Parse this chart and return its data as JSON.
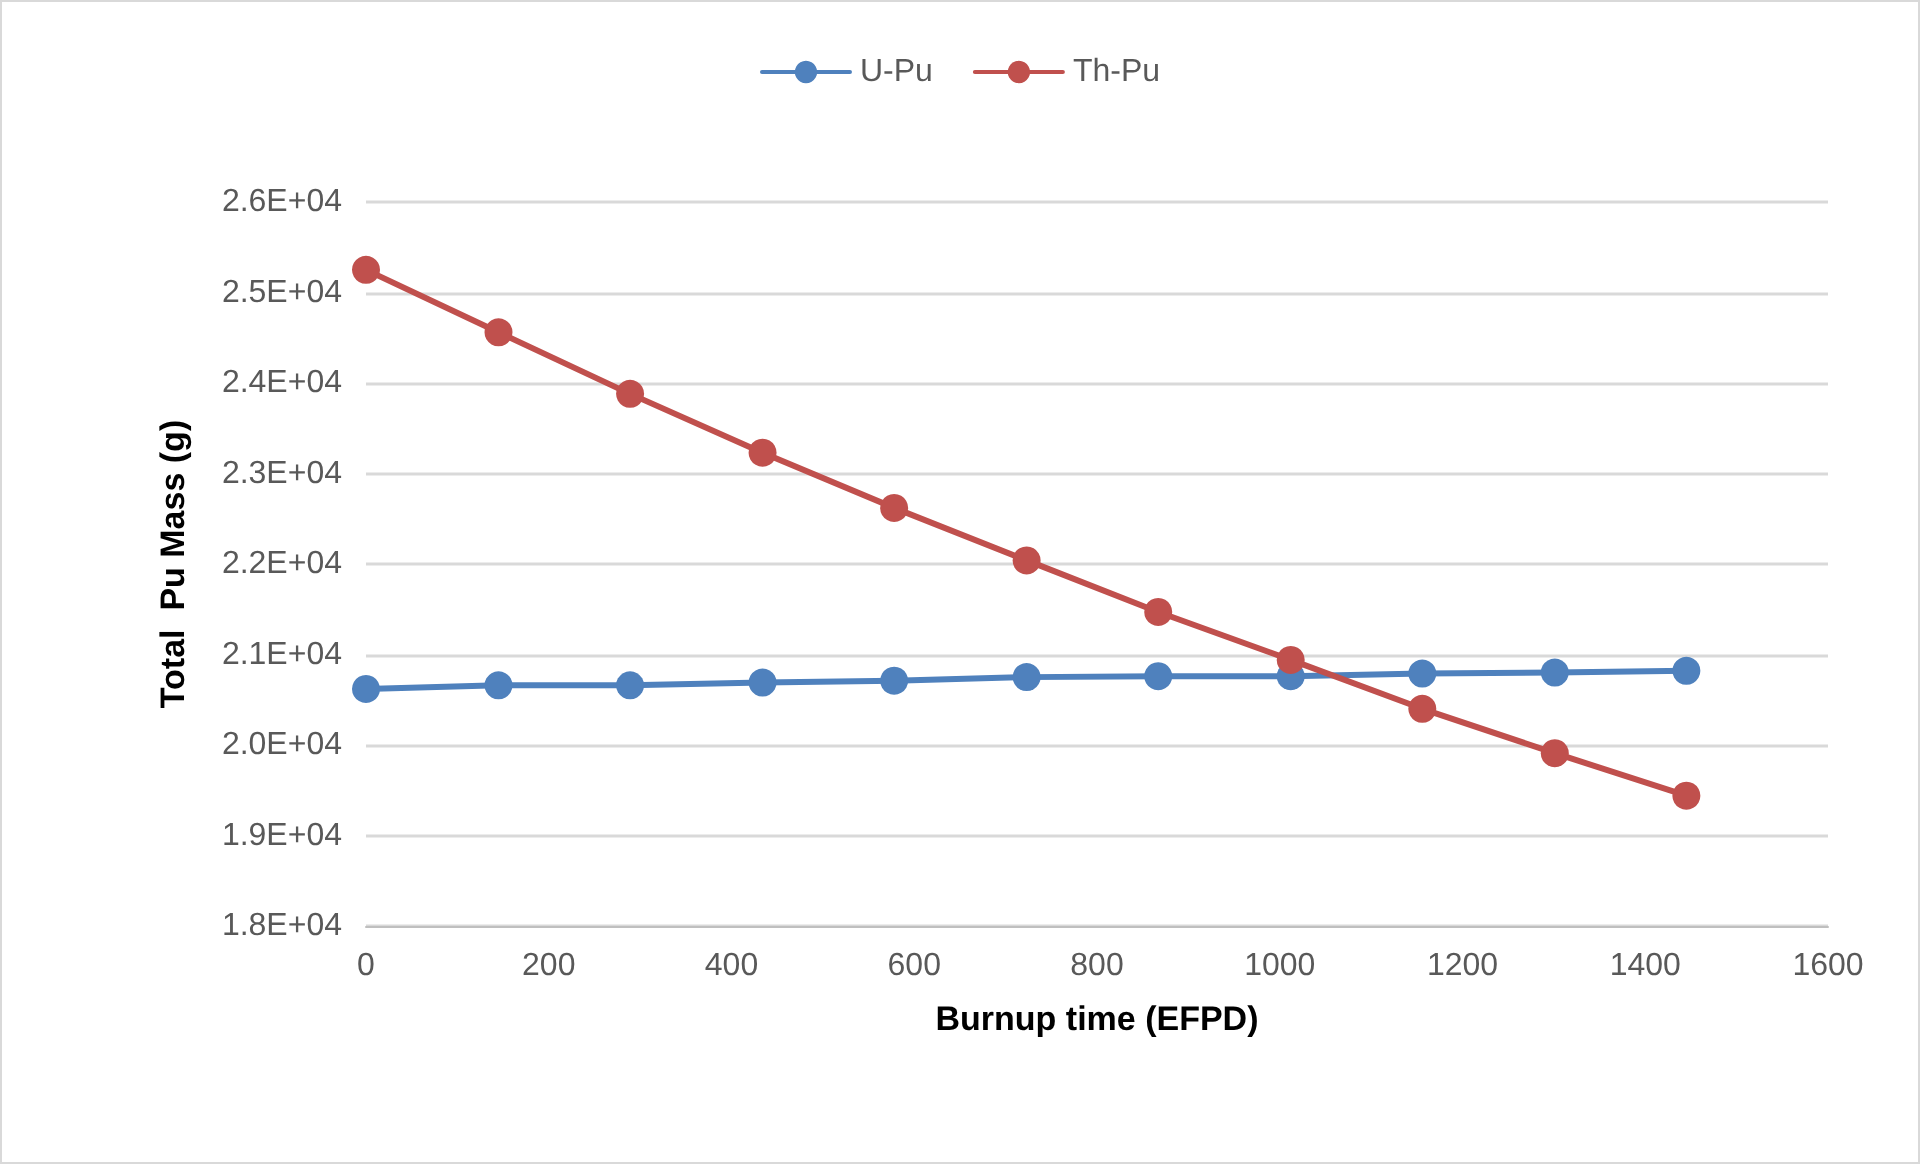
{
  "chart_data": {
    "type": "line",
    "xlabel": "Burnup time (EFPD)",
    "ylabel": "Total  Pu Mass (g)",
    "x": [
      0,
      145,
      289,
      434,
      578,
      723,
      867,
      1012,
      1156,
      1301,
      1445
    ],
    "series": [
      {
        "name": "U-Pu",
        "color": "#4f81bd",
        "values": [
          20620,
          20660,
          20660,
          20690,
          20710,
          20750,
          20760,
          20760,
          20790,
          20800,
          20820
        ]
      },
      {
        "name": "Th-Pu",
        "color": "#c0504d",
        "values": [
          25250,
          24560,
          23880,
          23230,
          22620,
          22040,
          21470,
          20940,
          20400,
          19910,
          19440
        ]
      }
    ],
    "xlim": [
      0,
      1600
    ],
    "xticks": [
      0,
      200,
      400,
      600,
      800,
      1000,
      1200,
      1400,
      1600
    ],
    "ylim": [
      18000,
      26000
    ],
    "yticks": [
      {
        "value": 18000,
        "label": "1.8E+04"
      },
      {
        "value": 19000,
        "label": "1.9E+04"
      },
      {
        "value": 20000,
        "label": "2.0E+04"
      },
      {
        "value": 21000,
        "label": "2.1E+04"
      },
      {
        "value": 22000,
        "label": "2.2E+04"
      },
      {
        "value": 23000,
        "label": "2.3E+04"
      },
      {
        "value": 24000,
        "label": "2.4E+04"
      },
      {
        "value": 25000,
        "label": "2.5E+04"
      },
      {
        "value": 26000,
        "label": "2.6E+04"
      }
    ],
    "grid": "y",
    "legend": "top",
    "marker": "circle",
    "line_style": "solid"
  }
}
